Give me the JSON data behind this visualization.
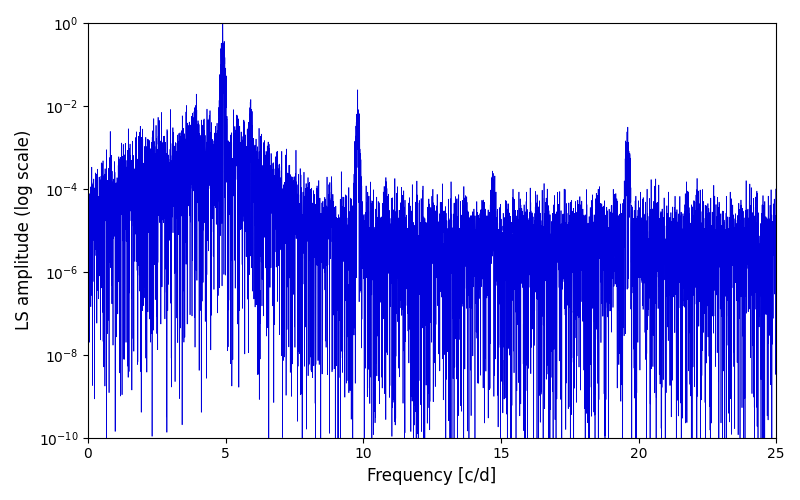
{
  "title": "",
  "xlabel": "Frequency [c/d]",
  "ylabel": "LS amplitude (log scale)",
  "xlim": [
    0,
    25
  ],
  "ylim": [
    1e-10,
    1.0
  ],
  "line_color": "#0000dd",
  "line_width": 0.5,
  "figsize": [
    8.0,
    5.0
  ],
  "dpi": 100,
  "freq_min": 0.0,
  "freq_max": 25.0,
  "n_points": 8000,
  "noise_base": 1e-05,
  "peak1_freq": 4.9,
  "peak1_amp": 0.28,
  "peak2_freq": 9.8,
  "peak2_amp": 0.003,
  "peak3_freq": 19.6,
  "peak3_amp": 0.0012,
  "seed": 7
}
